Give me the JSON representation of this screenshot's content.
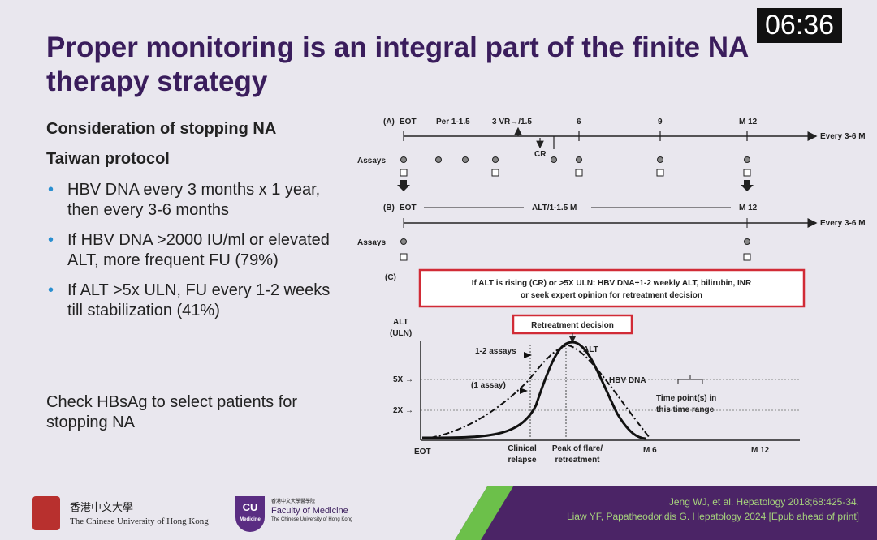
{
  "timer": "06:36",
  "title": "Proper monitoring is an integral part of the finite NA therapy strategy",
  "left": {
    "heading": "Consideration of stopping NA",
    "subheading": "Taiwan protocol",
    "bullets": [
      "HBV DNA every 3 months x 1 year, then every 3-6 months",
      "If HBV DNA >2000 IU/ml or elevated ALT, more frequent FU (79%)",
      "If ALT >5x ULN, FU every 1-2 weeks till stabilization (41%)"
    ],
    "note": "Check HBsAg to select patients for stopping NA"
  },
  "diagram": {
    "panel_a": {
      "label": "(A)",
      "ticks": [
        "EOT",
        "Per 1-1.5",
        "3 VR→/1.5",
        "6",
        "9",
        "M 12"
      ],
      "arrow_label": "Every 3-6 M",
      "cr": "CR",
      "assays": "Assays"
    },
    "panel_b": {
      "label": "(B)",
      "start": "EOT",
      "mid": "ALT/1-1.5 M",
      "end": "M 12",
      "arrow_label": "Every 3-6 M",
      "assays": "Assays"
    },
    "panel_c": {
      "label": "(C)",
      "box": [
        "If ALT is rising (CR) or >5X ULN: HBV DNA+1-2 weekly ALT, bilirubin, INR",
        "or seek expert opinion for retreatment decision"
      ],
      "retreatment": "Retreatment decision",
      "y_label": [
        "ALT",
        "(ULN)"
      ],
      "y5": "5X →",
      "y2": "2X →",
      "assays_12": "1-2 assays",
      "assay_1": "(1 assay)",
      "alt": "ALT",
      "hbv": "HBV DNA",
      "time_point": [
        "Time point(s) in",
        "this time range"
      ],
      "x_eot": "EOT",
      "x_relapse": [
        "Clinical",
        "relapse"
      ],
      "x_peak": [
        "Peak of flare/",
        "retreatment"
      ],
      "x_m6": "M 6",
      "x_m12": "M 12"
    }
  },
  "footer": {
    "cuhk_cn": "香港中文大學",
    "cuhk_en": "The Chinese University of Hong Kong",
    "cu": "CU",
    "cu_sub": "Medicine",
    "fom_cn": "香港中文大學醫學院",
    "fom": "Faculty of Medicine",
    "fom_sub": "The Chinese University of Hong Kong",
    "refs": [
      "Jeng WJ, et al. Hepatology 2018;68:425-34.",
      "Liaw YF, Papatheodoridis G. Hepatology 2024 [Epub ahead of print]"
    ]
  }
}
